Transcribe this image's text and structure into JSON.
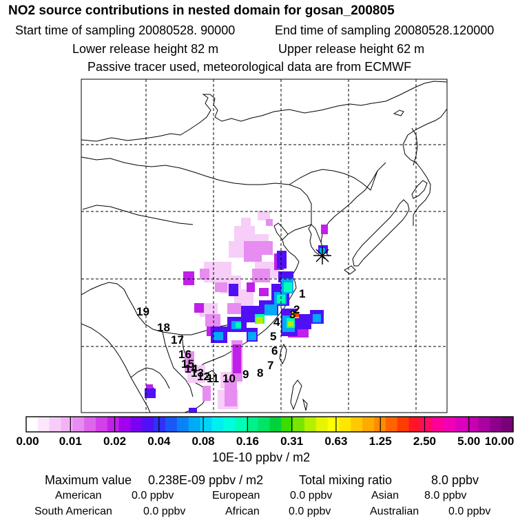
{
  "header": {
    "title": "NO2 source contributions in nested domain for gosan_200805",
    "start_time": "Start time of sampling 20080528. 90000",
    "end_time": "End time of sampling 20080528.120000",
    "lower_height": "Lower release height   82 m",
    "upper_height": "Upper release height   62 m",
    "tracer_note": "Passive tracer used, meteorological data are from ECMWF"
  },
  "map": {
    "receptor_symbol": "asterisk",
    "source_labels": [
      "1",
      "2",
      "3",
      "4",
      "5",
      "6",
      "7",
      "8",
      "9",
      "10",
      "11",
      "12",
      "13",
      "14",
      "15",
      "16",
      "17",
      "18",
      "19"
    ]
  },
  "colorbar": {
    "tick_labels": [
      "0.00",
      "0.01",
      "0.02",
      "0.04",
      "0.08",
      "0.16",
      "0.31",
      "0.63",
      "1.25",
      "2.50",
      "5.00",
      "10.00"
    ],
    "colors": [
      "#ffffff",
      "#fbe6fb",
      "#f6ccf8",
      "#f1b3f5",
      "#e78cf0",
      "#de66ec",
      "#d240ea",
      "#c020ea",
      "#a000ee",
      "#7a00f2",
      "#5010f5",
      "#3030f8",
      "#1a58f5",
      "#0a82f5",
      "#00aaf5",
      "#00d2f8",
      "#00f0f0",
      "#00ffdc",
      "#00ffb4",
      "#00f08c",
      "#00e664",
      "#00d23c",
      "#3cdc00",
      "#78e600",
      "#b4f000",
      "#e6f500",
      "#ffff00",
      "#ffe600",
      "#ffc800",
      "#ffaa00",
      "#ff8c00",
      "#ff6400",
      "#ff3c00",
      "#ff1428",
      "#ff0a64",
      "#ff0096",
      "#f000b4",
      "#dc00be",
      "#c800b4",
      "#aa00a0",
      "#8c008c",
      "#780078"
    ],
    "units": "10E-10 ppbv / m2"
  },
  "summary": {
    "max_label": "Maximum value",
    "max_value": "0.238E-09 ppbv / m2",
    "total_label": "Total mixing ratio",
    "total_value": "8.0 ppbv",
    "regions": [
      {
        "name": "American",
        "value": "0.0 ppbv"
      },
      {
        "name": "European",
        "value": "0.0 ppbv"
      },
      {
        "name": "Asian",
        "value": "8.0 ppbv"
      },
      {
        "name": "South American",
        "value": "0.0 ppbv"
      },
      {
        "name": "African",
        "value": "0.0 ppbv"
      },
      {
        "name": "Australian",
        "value": "0.0 ppbv"
      }
    ]
  }
}
